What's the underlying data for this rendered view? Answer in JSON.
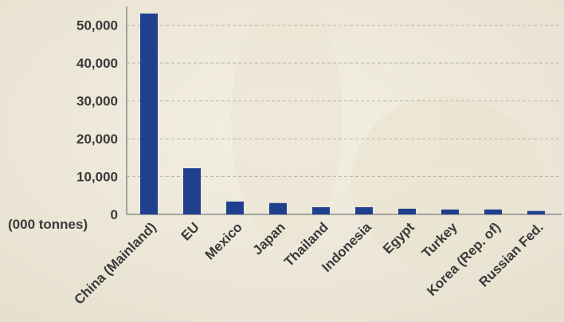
{
  "chart_data": {
    "type": "bar",
    "y_label": "(000 tonnes)",
    "categories": [
      "China (Mainland)",
      "EU",
      "Mexico",
      "Japan",
      "Thailand",
      "Indonesia",
      "Egypt",
      "Turkey",
      "Korea (Rep. of)",
      "Russian Fed."
    ],
    "values": [
      53100,
      12200,
      3400,
      3000,
      1900,
      1900,
      1500,
      1300,
      1300,
      900
    ],
    "color": "#1f3f8f",
    "ylim": [
      0,
      55000
    ],
    "yticks": [
      0,
      {
        "value": 10000,
        "label": "10,000"
      },
      {
        "value": 20000,
        "label": "20,000"
      },
      {
        "value": 30000,
        "label": "30,000"
      },
      {
        "value": 40000,
        "label": "40,000"
      },
      {
        "value": 50000,
        "label": "50,000"
      }
    ],
    "grid": true
  }
}
